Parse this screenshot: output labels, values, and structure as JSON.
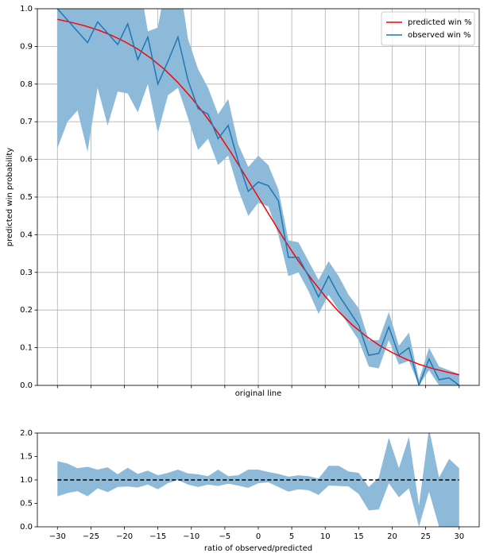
{
  "chart_data": [
    {
      "type": "line",
      "xlabel": "original line",
      "ylabel": "predicted win probability",
      "xlim": [
        -33,
        33
      ],
      "ylim": [
        0,
        1
      ],
      "xticks": [
        -30,
        -25,
        -20,
        -15,
        -10,
        -5,
        0,
        5,
        10,
        15,
        20,
        25,
        30
      ],
      "show_xtick_labels": false,
      "yticks": [
        {
          "value": 0,
          "label": "0.0"
        },
        {
          "value": 0.1,
          "label": "0.1"
        },
        {
          "value": 0.2,
          "label": "0.2"
        },
        {
          "value": 0.3,
          "label": "0.3"
        },
        {
          "value": 0.4,
          "label": "0.4"
        },
        {
          "value": 0.5,
          "label": "0.5"
        },
        {
          "value": 0.6,
          "label": "0.6"
        },
        {
          "value": 0.7,
          "label": "0.7"
        },
        {
          "value": 0.8,
          "label": "0.8"
        },
        {
          "value": 0.9,
          "label": "0.9"
        },
        {
          "value": 1.0,
          "label": "1.0"
        }
      ],
      "grid": true,
      "legend": "upper right",
      "series": [
        {
          "name": "predicted win %",
          "color": "#ff0000",
          "x": [
            -30,
            -28,
            -26,
            -24,
            -22,
            -20,
            -18,
            -16,
            -14,
            -12,
            -10,
            -8,
            -6,
            -4,
            -2,
            0,
            2,
            4,
            6,
            8,
            10,
            12,
            14,
            16,
            18,
            20,
            22,
            24,
            26,
            28,
            30
          ],
          "values": [
            0.972,
            0.964,
            0.955,
            0.944,
            0.93,
            0.913,
            0.893,
            0.868,
            0.839,
            0.804,
            0.764,
            0.719,
            0.67,
            0.616,
            0.558,
            0.5,
            0.442,
            0.384,
            0.33,
            0.281,
            0.236,
            0.196,
            0.161,
            0.132,
            0.107,
            0.087,
            0.07,
            0.056,
            0.045,
            0.036,
            0.028
          ]
        },
        {
          "name": "observed win %",
          "color": "#1f77b4",
          "band_color": "#8ebad9",
          "x": [
            -30,
            -28.5,
            -27,
            -25.5,
            -24,
            -22.5,
            -21,
            -19.5,
            -18,
            -16.5,
            -15,
            -13.5,
            -12,
            -10.5,
            -9,
            -7.5,
            -6,
            -4.5,
            -3,
            -1.5,
            0,
            1.5,
            3,
            4.5,
            6,
            7.5,
            9,
            10.5,
            12,
            13.5,
            15,
            16.5,
            18,
            19.5,
            21,
            22.5,
            24,
            25.5,
            27,
            28.5,
            30
          ],
          "values": [
            1.0,
            0.97,
            0.94,
            0.91,
            0.965,
            0.935,
            0.905,
            0.96,
            0.865,
            0.925,
            0.8,
            0.86,
            0.925,
            0.81,
            0.735,
            0.72,
            0.655,
            0.69,
            0.595,
            0.515,
            0.54,
            0.53,
            0.49,
            0.34,
            0.34,
            0.29,
            0.235,
            0.29,
            0.24,
            0.2,
            0.16,
            0.08,
            0.085,
            0.155,
            0.08,
            0.1,
            0.0,
            0.07,
            0.015,
            0.02,
            0.0
          ],
          "lower": [
            0.63,
            0.7,
            0.73,
            0.62,
            0.79,
            0.69,
            0.78,
            0.775,
            0.725,
            0.8,
            0.67,
            0.77,
            0.79,
            0.71,
            0.625,
            0.655,
            0.585,
            0.61,
            0.52,
            0.45,
            0.485,
            0.475,
            0.4,
            0.29,
            0.3,
            0.25,
            0.19,
            0.24,
            0.2,
            0.16,
            0.12,
            0.05,
            0.045,
            0.12,
            0.055,
            0.065,
            0.0,
            0.04,
            0.0,
            0.0,
            0.0
          ],
          "upper": [
            1.1,
            1.1,
            1.1,
            1.1,
            1.1,
            1.1,
            1.1,
            1.1,
            1.1,
            0.94,
            0.95,
            1.1,
            1.1,
            0.92,
            0.84,
            0.79,
            0.72,
            0.76,
            0.64,
            0.58,
            0.61,
            0.585,
            0.52,
            0.385,
            0.38,
            0.33,
            0.28,
            0.33,
            0.29,
            0.24,
            0.205,
            0.12,
            0.12,
            0.195,
            0.105,
            0.14,
            0.015,
            0.1,
            0.05,
            0.04,
            0.03
          ]
        }
      ]
    },
    {
      "type": "band",
      "xlabel": "ratio of observed/predicted",
      "xlim": [
        -33,
        33
      ],
      "ylim": [
        0,
        2
      ],
      "xticks": [
        -30,
        -25,
        -20,
        -15,
        -10,
        -5,
        0,
        5,
        10,
        15,
        20,
        25,
        30
      ],
      "show_xtick_labels": true,
      "xtick_labels": [
        "−30",
        "−25",
        "−20",
        "−15",
        "−10",
        "−5",
        "0",
        "5",
        "10",
        "15",
        "20",
        "25",
        "30"
      ],
      "yticks": [
        {
          "value": 0,
          "label": "0.0"
        },
        {
          "value": 0.5,
          "label": "0.5"
        },
        {
          "value": 1.0,
          "label": "1.0"
        },
        {
          "value": 1.5,
          "label": "1.5"
        },
        {
          "value": 2.0,
          "label": "2.0"
        }
      ],
      "grid": false,
      "reference_line": 1,
      "series": [
        {
          "band_color": "#8ebad9",
          "x": [
            -30,
            -28.5,
            -27,
            -25.5,
            -24,
            -22.5,
            -21,
            -19.5,
            -18,
            -16.5,
            -15,
            -13.5,
            -12,
            -10.5,
            -9,
            -7.5,
            -6,
            -4.5,
            -3,
            -1.5,
            0,
            1.5,
            3,
            4.5,
            6,
            7.5,
            9,
            10.5,
            12,
            13.5,
            15,
            16.5,
            18,
            19.5,
            21,
            22.5,
            24,
            25.5,
            27,
            28.5,
            30
          ],
          "lower": [
            0.65,
            0.72,
            0.76,
            0.65,
            0.82,
            0.74,
            0.85,
            0.86,
            0.84,
            0.9,
            0.8,
            0.93,
            1.0,
            0.9,
            0.85,
            0.9,
            0.87,
            0.92,
            0.88,
            0.83,
            0.93,
            0.95,
            0.85,
            0.75,
            0.8,
            0.78,
            0.68,
            0.88,
            0.87,
            0.86,
            0.7,
            0.35,
            0.37,
            0.93,
            0.63,
            0.82,
            0,
            0.75,
            0,
            0,
            0
          ],
          "upper": [
            1.4,
            1.35,
            1.25,
            1.28,
            1.22,
            1.27,
            1.12,
            1.26,
            1.13,
            1.2,
            1.1,
            1.15,
            1.22,
            1.14,
            1.12,
            1.08,
            1.22,
            1.08,
            1.1,
            1.22,
            1.22,
            1.17,
            1.13,
            1.07,
            1.1,
            1.08,
            1.03,
            1.3,
            1.3,
            1.18,
            1.15,
            0.85,
            1.05,
            1.9,
            1.25,
            1.92,
            0.45,
            2.1,
            1.05,
            1.45,
            1.25
          ]
        }
      ]
    }
  ]
}
